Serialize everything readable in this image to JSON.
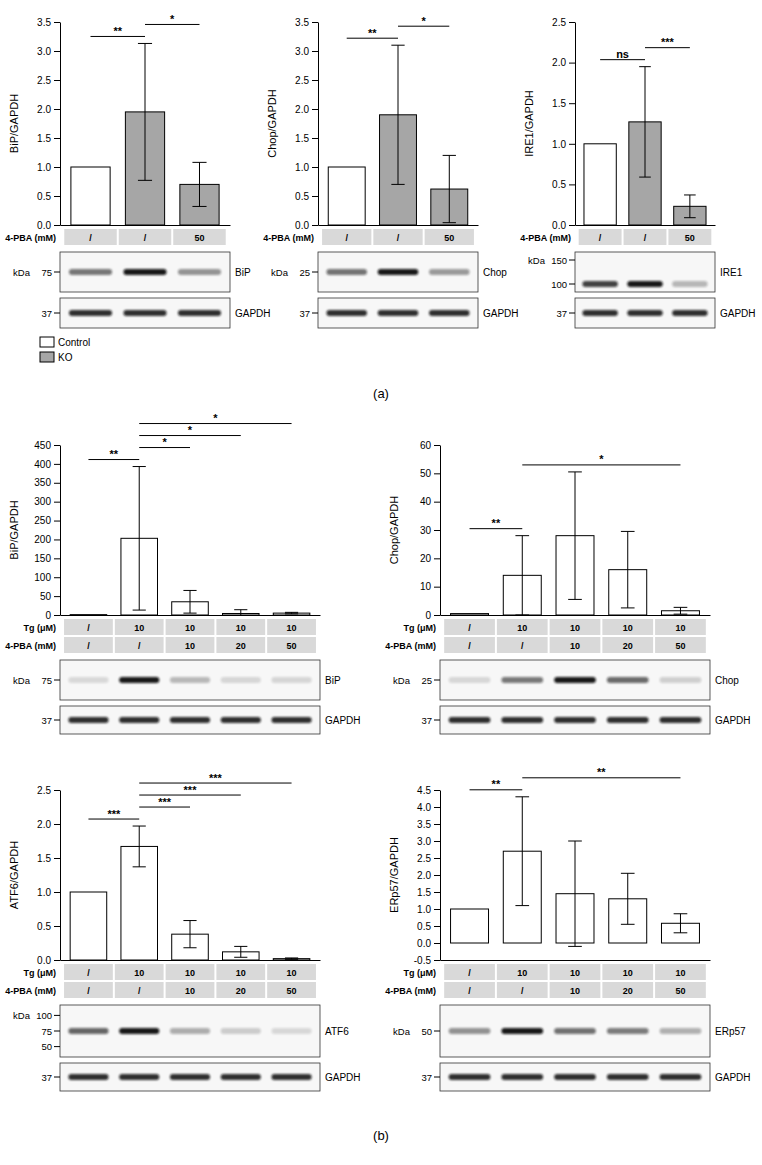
{
  "panel_labels": [
    "(a)",
    "(b)"
  ],
  "chart_data": [
    {
      "type": "bar",
      "ylabel": "BiP/GAPDH",
      "categories": [
        null,
        null,
        null
      ],
      "values": [
        1,
        1.95,
        0.7
      ],
      "errors": [
        null,
        1.18,
        0.38
      ],
      "colors": [
        "#ffffff",
        "#a6a6a6",
        "#a6a6a6"
      ],
      "ylim": [
        0,
        3.5
      ],
      "yticks": [
        {
          "value": 0,
          "label": "0.0"
        },
        0.5,
        {
          "value": 1,
          "label": "1.0"
        },
        1.5,
        {
          "value": 2,
          "label": "2.0"
        },
        2.5,
        {
          "value": 3,
          "label": "3.0"
        },
        3.5
      ],
      "significance": [
        {
          "pair": [
            0,
            1
          ],
          "label": "**"
        },
        {
          "pair": [
            1,
            2
          ],
          "label": "*"
        }
      ],
      "treatments": [
        {
          "label": "4-PBA (mM)",
          "values": [
            "/",
            "/",
            50
          ]
        }
      ],
      "blot": {
        "unit": "kDa",
        "target": "BiP",
        "markers": [
          75
        ],
        "loading": "GAPDH",
        "loading_markers": [
          37
        ]
      },
      "legend_items": [
        {
          "name": "Control",
          "color": "#ffffff"
        },
        {
          "name": "KO",
          "color": "#a6a6a6"
        }
      ]
    },
    {
      "type": "bar",
      "ylabel": "Chop/GAPDH",
      "categories": [
        null,
        null,
        null
      ],
      "values": [
        1,
        1.9,
        0.62
      ],
      "errors": [
        null,
        1.2,
        0.58
      ],
      "colors": [
        "#ffffff",
        "#a6a6a6",
        "#a6a6a6"
      ],
      "ylim": [
        0,
        3.5
      ],
      "yticks": [
        {
          "value": 0,
          "label": "0.0"
        },
        0.5,
        {
          "value": 1,
          "label": "1.0"
        },
        1.5,
        {
          "value": 2,
          "label": "2.0"
        },
        2.5,
        {
          "value": 3,
          "label": "3.0"
        },
        3.5
      ],
      "significance": [
        {
          "pair": [
            0,
            1
          ],
          "label": "**"
        },
        {
          "pair": [
            1,
            2
          ],
          "label": "*"
        }
      ],
      "treatments": [
        {
          "label": "4-PBA (mM)",
          "values": [
            "/",
            "/",
            50
          ]
        }
      ],
      "blot": {
        "unit": "kDa",
        "target": "Chop",
        "markers": [
          25
        ],
        "loading": "GAPDH",
        "loading_markers": [
          37
        ]
      }
    },
    {
      "type": "bar",
      "ylabel": "IRE1/GAPDH",
      "categories": [
        null,
        null,
        null
      ],
      "values": [
        1,
        1.27,
        0.23
      ],
      "errors": [
        null,
        0.68,
        0.14
      ],
      "colors": [
        "#ffffff",
        "#a6a6a6",
        "#a6a6a6"
      ],
      "ylim": [
        0,
        2.5
      ],
      "yticks": [
        {
          "value": 0,
          "label": "0.0"
        },
        0.5,
        {
          "value": 1,
          "label": "1.0"
        },
        1.5,
        {
          "value": 2,
          "label": "2.0"
        },
        2.5
      ],
      "significance": [
        {
          "pair": [
            0,
            1
          ],
          "label": "ns"
        },
        {
          "pair": [
            1,
            2
          ],
          "label": "***"
        }
      ],
      "treatments": [
        {
          "label": "4-PBA (mM)",
          "values": [
            "/",
            "/",
            50
          ]
        }
      ],
      "blot": {
        "unit": "kDa",
        "target": "IRE1",
        "markers": [
          150,
          100
        ],
        "loading": "GAPDH",
        "loading_markers": [
          37
        ]
      }
    },
    {
      "type": "bar",
      "ylabel": "BiP/GAPDH",
      "categories": [
        null,
        null,
        null,
        null,
        null
      ],
      "values": [
        1,
        203,
        35,
        4,
        5
      ],
      "errors": [
        null,
        190,
        30,
        10,
        2
      ],
      "colors": [
        "#ffffff",
        "#ffffff",
        "#ffffff",
        "#ffffff",
        "#ffffff"
      ],
      "ylim": [
        0,
        450
      ],
      "yticks": [
        0,
        50,
        100,
        150,
        200,
        250,
        300,
        350,
        400,
        450
      ],
      "significance": [
        {
          "pair": [
            0,
            1
          ],
          "label": "**"
        },
        {
          "pair": [
            1,
            2
          ],
          "label": "*"
        },
        {
          "pair": [
            1,
            3
          ],
          "label": "*"
        },
        {
          "pair": [
            1,
            4
          ],
          "label": "*"
        }
      ],
      "treatments": [
        {
          "label": "Tg (μM)",
          "values": [
            "/",
            10,
            10,
            10,
            10
          ]
        },
        {
          "label": "4-PBA (mM)",
          "values": [
            "/",
            "/",
            10,
            20,
            50
          ]
        }
      ],
      "blot": {
        "unit": "kDa",
        "target": "BiP",
        "markers": [
          75
        ],
        "loading": "GAPDH",
        "loading_markers": [
          37
        ]
      }
    },
    {
      "type": "bar",
      "ylabel": "Chop/GAPDH",
      "categories": [
        null,
        null,
        null,
        null,
        null
      ],
      "values": [
        0.5,
        14,
        28,
        16,
        1.5
      ],
      "errors": [
        null,
        14,
        22.5,
        13.5,
        1.2
      ],
      "colors": [
        "#ffffff",
        "#ffffff",
        "#ffffff",
        "#ffffff",
        "#ffffff"
      ],
      "ylim": [
        0,
        60
      ],
      "yticks": [
        0,
        10,
        20,
        30,
        40,
        50,
        60
      ],
      "significance": [
        {
          "pair": [
            0,
            1
          ],
          "label": "**"
        },
        {
          "pair": [
            1,
            4
          ],
          "label": "*"
        }
      ],
      "treatments": [
        {
          "label": "Tg (μM)",
          "values": [
            "/",
            10,
            10,
            10,
            10
          ]
        },
        {
          "label": "4-PBA (mM)",
          "values": [
            "/",
            "/",
            10,
            20,
            50
          ]
        }
      ],
      "blot": {
        "unit": "kDa",
        "target": "Chop",
        "markers": [
          25
        ],
        "loading": "GAPDH",
        "loading_markers": [
          37
        ]
      }
    },
    {
      "type": "bar",
      "ylabel": "ATF6/GAPDH",
      "categories": [
        null,
        null,
        null,
        null,
        null
      ],
      "values": [
        1,
        1.67,
        0.38,
        0.12,
        0.02
      ],
      "errors": [
        null,
        0.3,
        0.2,
        0.08,
        0.01
      ],
      "colors": [
        "#ffffff",
        "#ffffff",
        "#ffffff",
        "#ffffff",
        "#ffffff"
      ],
      "ylim": [
        0,
        2.5
      ],
      "yticks": [
        {
          "value": 0,
          "label": "0.0"
        },
        0.5,
        {
          "value": 1,
          "label": "1.0"
        },
        1.5,
        {
          "value": 2,
          "label": "2.0"
        },
        2.5
      ],
      "significance": [
        {
          "pair": [
            0,
            1
          ],
          "label": "***"
        },
        {
          "pair": [
            1,
            2
          ],
          "label": "***"
        },
        {
          "pair": [
            1,
            3
          ],
          "label": "***"
        },
        {
          "pair": [
            1,
            4
          ],
          "label": "***"
        }
      ],
      "treatments": [
        {
          "label": "Tg (μM)",
          "values": [
            "/",
            10,
            10,
            10,
            10
          ]
        },
        {
          "label": "4-PBA (mM)",
          "values": [
            "/",
            "/",
            10,
            20,
            50
          ]
        }
      ],
      "blot": {
        "unit": "kDa",
        "target": "ATF6",
        "markers": [
          100,
          75,
          50
        ],
        "loading": "GAPDH",
        "loading_markers": [
          37
        ]
      }
    },
    {
      "type": "bar",
      "ylabel": "ERp57/GAPDH",
      "categories": [
        null,
        null,
        null,
        null,
        null
      ],
      "values": [
        1,
        2.7,
        1.45,
        1.3,
        0.58
      ],
      "errors": [
        null,
        1.6,
        1.55,
        0.75,
        0.28
      ],
      "colors": [
        "#ffffff",
        "#ffffff",
        "#ffffff",
        "#ffffff",
        "#ffffff"
      ],
      "ylim": [
        -0.5,
        4.5
      ],
      "yticks": [
        -0.5,
        {
          "value": 0,
          "label": "0.0"
        },
        0.5,
        {
          "value": 1,
          "label": "1.0"
        },
        1.5,
        {
          "value": 2,
          "label": "2.0"
        },
        2.5,
        {
          "value": 3,
          "label": "3.0"
        },
        3.5,
        {
          "value": 4,
          "label": "4.0"
        },
        4.5
      ],
      "significance": [
        {
          "pair": [
            0,
            1
          ],
          "label": "**"
        },
        {
          "pair": [
            1,
            4
          ],
          "label": "**"
        }
      ],
      "treatments": [
        {
          "label": "Tg (μM)",
          "values": [
            "/",
            10,
            10,
            10,
            10
          ]
        },
        {
          "label": "4-PBA (mM)",
          "values": [
            "/",
            "/",
            10,
            20,
            50
          ]
        }
      ],
      "blot": {
        "unit": "kDa",
        "target": "ERp57",
        "markers": [
          50
        ],
        "loading": "GAPDH",
        "loading_markers": [
          37
        ]
      }
    }
  ]
}
